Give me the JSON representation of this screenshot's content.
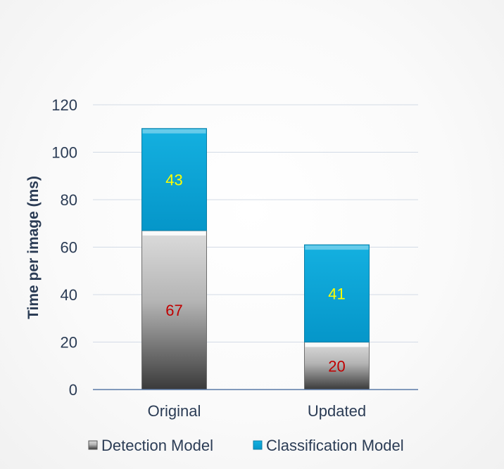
{
  "chart_data": {
    "type": "bar",
    "stacked": true,
    "categories": [
      "Original",
      "Updated"
    ],
    "series": [
      {
        "name": "Detection Model",
        "values": [
          67,
          20
        ],
        "color": "#8a8a8a",
        "label_color": "#c00000"
      },
      {
        "name": "Classification Model",
        "values": [
          43,
          41
        ],
        "color": "#0ba2d4",
        "label_color": "#ffff00"
      }
    ],
    "ylabel": "Time per image (ms)",
    "xlabel": "",
    "ylim": [
      0,
      120
    ],
    "yticks": [
      0,
      20,
      40,
      60,
      80,
      100,
      120
    ],
    "grid": true,
    "legend": "bottom"
  }
}
